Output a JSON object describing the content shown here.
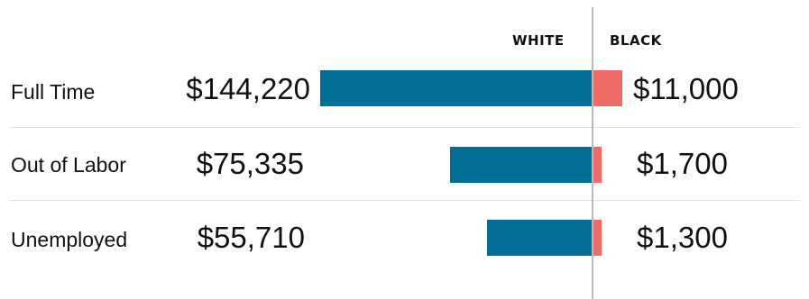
{
  "colors": {
    "white": "#006e96",
    "black": "#ee6b66"
  },
  "headers": {
    "white": "WHITE",
    "black": "BLACK"
  },
  "chart_data": {
    "type": "bar",
    "orientation": "horizontal-diverging",
    "series": [
      {
        "name": "WHITE",
        "values": [
          144220,
          75335,
          55710
        ]
      },
      {
        "name": "BLACK",
        "values": [
          11000,
          1700,
          1300
        ]
      }
    ],
    "categories": [
      "Full Time",
      "Out of Labor",
      "Unemployed"
    ],
    "grid": false,
    "legend": "top"
  },
  "rows": [
    {
      "label": "Full Time",
      "white_label": "$144,220",
      "black_label": "$11,000"
    },
    {
      "label": "Out of Labor",
      "white_label": "$75,335",
      "black_label": "$1,700"
    },
    {
      "label": "Unemployed",
      "white_label": "$55,710",
      "black_label": "$1,300"
    }
  ]
}
